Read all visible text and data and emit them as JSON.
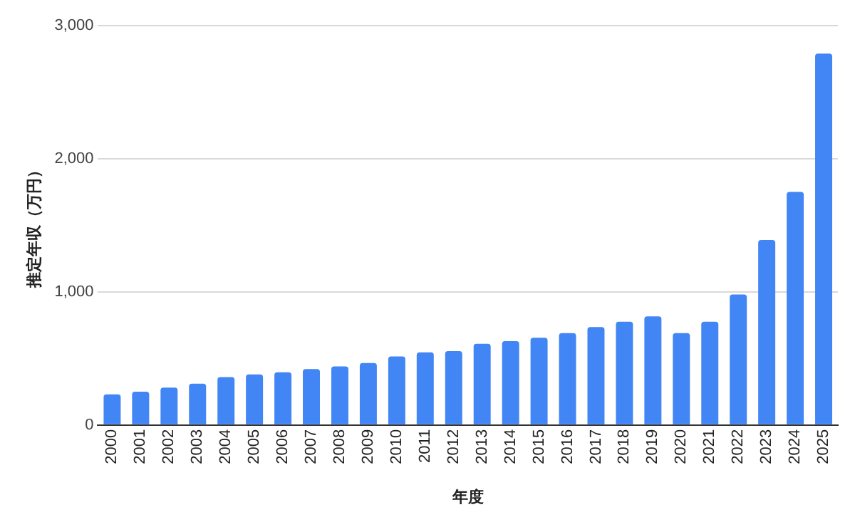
{
  "chart_data": {
    "type": "bar",
    "xlabel": "年度",
    "ylabel": "推定年収（万円）",
    "categories": [
      "2000",
      "2001",
      "2002",
      "2003",
      "2004",
      "2005",
      "2006",
      "2007",
      "2008",
      "2009",
      "2010",
      "2011",
      "2012",
      "2013",
      "2014",
      "2015",
      "2016",
      "2017",
      "2018",
      "2019",
      "2020",
      "2021",
      "2022",
      "2023",
      "2024",
      "2025"
    ],
    "values": [
      230,
      250,
      280,
      310,
      360,
      380,
      395,
      420,
      440,
      465,
      515,
      545,
      555,
      610,
      630,
      655,
      690,
      735,
      775,
      815,
      690,
      775,
      980,
      1390,
      1750,
      2790
    ],
    "color": "#4285f4",
    "ylim": [
      0,
      3000
    ],
    "yticks": [
      {
        "value": 0,
        "label": "0"
      },
      {
        "value": 1000,
        "label": "1,000"
      },
      {
        "value": 2000,
        "label": "2,000"
      },
      {
        "value": 3000,
        "label": "3,000"
      }
    ],
    "grid": "y",
    "legend": false
  }
}
